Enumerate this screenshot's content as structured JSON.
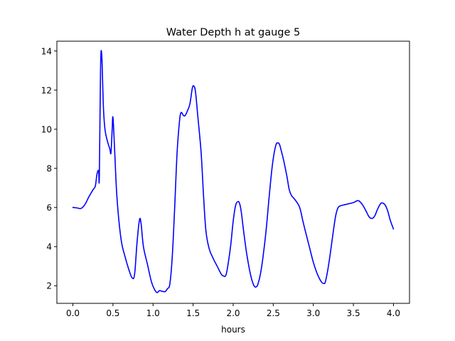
{
  "chart_data": {
    "type": "line",
    "title": "Water Depth h at gauge 5",
    "xlabel": "hours",
    "ylabel": "",
    "xlim": [
      -0.2,
      4.2
    ],
    "ylim": [
      1.1,
      14.5
    ],
    "xticks": [
      0.0,
      0.5,
      1.0,
      1.5,
      2.0,
      2.5,
      3.0,
      3.5,
      4.0
    ],
    "xtick_labels": [
      "0.0",
      "0.5",
      "1.0",
      "1.5",
      "2.0",
      "2.5",
      "3.0",
      "3.5",
      "4.0"
    ],
    "yticks": [
      2,
      4,
      6,
      8,
      10,
      12,
      14
    ],
    "ytick_labels": [
      "2",
      "4",
      "6",
      "8",
      "10",
      "12",
      "14"
    ],
    "grid": false,
    "series": [
      {
        "color": "#0000ff",
        "x": [
          0.0,
          0.05,
          0.1,
          0.15,
          0.2,
          0.25,
          0.28,
          0.3,
          0.32,
          0.33,
          0.345,
          0.36,
          0.38,
          0.4,
          0.43,
          0.46,
          0.475,
          0.49,
          0.5,
          0.52,
          0.55,
          0.6,
          0.65,
          0.7,
          0.74,
          0.77,
          0.8,
          0.83,
          0.85,
          0.88,
          0.93,
          0.98,
          1.02,
          1.05,
          1.08,
          1.11,
          1.15,
          1.18,
          1.21,
          1.24,
          1.27,
          1.3,
          1.33,
          1.35,
          1.38,
          1.4,
          1.43,
          1.46,
          1.49,
          1.51,
          1.53,
          1.56,
          1.6,
          1.63,
          1.66,
          1.7,
          1.75,
          1.8,
          1.85,
          1.88,
          1.91,
          1.94,
          1.97,
          2.0,
          2.03,
          2.06,
          2.08,
          2.1,
          2.13,
          2.17,
          2.22,
          2.26,
          2.29,
          2.31,
          2.34,
          2.37,
          2.41,
          2.45,
          2.49,
          2.53,
          2.56,
          2.58,
          2.6,
          2.63,
          2.67,
          2.7,
          2.73,
          2.75,
          2.78,
          2.83,
          2.87,
          2.9,
          2.95,
          3.0,
          3.05,
          3.1,
          3.13,
          3.15,
          3.18,
          3.21,
          3.25,
          3.28,
          3.31,
          3.35,
          3.4,
          3.45,
          3.5,
          3.55,
          3.58,
          3.62,
          3.66,
          3.7,
          3.74,
          3.77,
          3.8,
          3.84,
          3.87,
          3.9,
          3.93,
          3.96,
          4.0
        ],
        "y": [
          6.0,
          5.98,
          5.95,
          6.15,
          6.55,
          6.9,
          7.1,
          7.7,
          7.9,
          7.6,
          13.1,
          13.8,
          11.2,
          10.0,
          9.4,
          9.0,
          8.8,
          10.0,
          10.6,
          9.0,
          6.5,
          4.4,
          3.5,
          2.8,
          2.4,
          2.6,
          4.2,
          5.35,
          5.2,
          4.0,
          3.1,
          2.2,
          1.8,
          1.65,
          1.75,
          1.72,
          1.7,
          1.85,
          2.1,
          3.5,
          6.0,
          8.8,
          10.4,
          10.85,
          10.7,
          10.7,
          10.95,
          11.3,
          12.1,
          12.2,
          11.9,
          10.6,
          8.8,
          6.6,
          4.8,
          3.9,
          3.4,
          3.0,
          2.6,
          2.5,
          2.55,
          3.2,
          4.1,
          5.3,
          6.1,
          6.3,
          6.2,
          5.8,
          4.8,
          3.6,
          2.5,
          2.0,
          1.95,
          2.1,
          2.6,
          3.4,
          4.8,
          6.6,
          8.2,
          9.15,
          9.3,
          9.2,
          8.9,
          8.4,
          7.6,
          6.9,
          6.6,
          6.5,
          6.35,
          6.0,
          5.3,
          4.8,
          4.0,
          3.2,
          2.6,
          2.2,
          2.12,
          2.2,
          2.8,
          3.6,
          4.8,
          5.6,
          6.0,
          6.1,
          6.15,
          6.2,
          6.25,
          6.35,
          6.3,
          6.1,
          5.8,
          5.5,
          5.45,
          5.6,
          5.9,
          6.2,
          6.22,
          6.1,
          5.8,
          5.35,
          4.9
        ]
      }
    ]
  }
}
